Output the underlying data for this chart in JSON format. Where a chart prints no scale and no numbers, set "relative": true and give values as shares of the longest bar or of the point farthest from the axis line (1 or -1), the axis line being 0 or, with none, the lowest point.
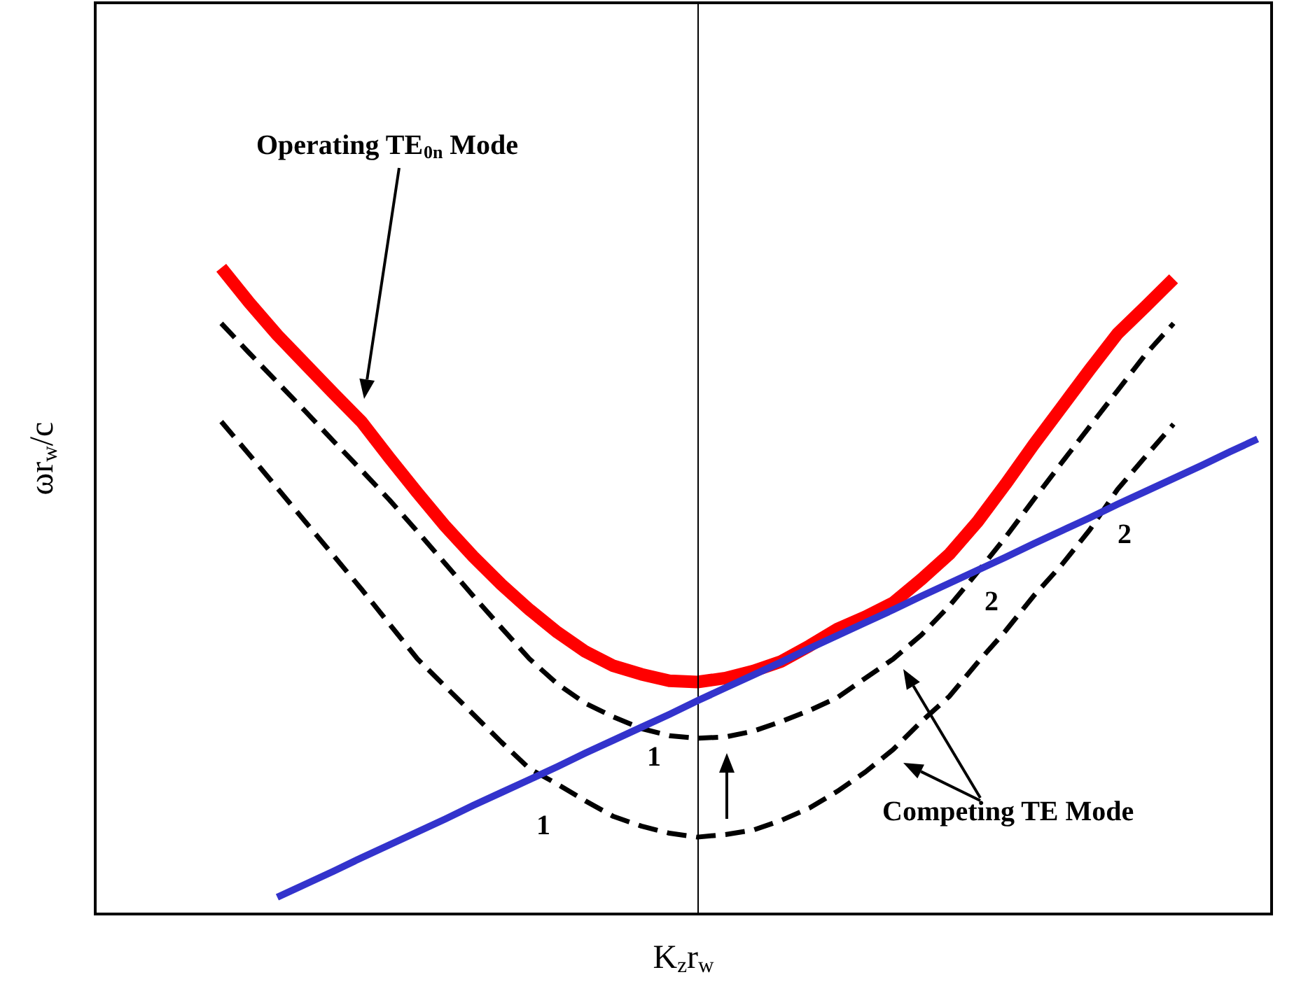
{
  "chart_data": {
    "type": "line",
    "relative": true,
    "xlabel": "K$_{z}$r$_{w}$",
    "ylabel": "ωr$_{w}$/c",
    "marker": "none",
    "categories": [
      null,
      null,
      null,
      null,
      null,
      null,
      null,
      null,
      null,
      null,
      null,
      null,
      null,
      null,
      null,
      null,
      null,
      null,
      null,
      null,
      null,
      null,
      null,
      null,
      null,
      null,
      null,
      null,
      null,
      null,
      null,
      null,
      null,
      null,
      null,
      null,
      null,
      null,
      null,
      null,
      null,
      null
    ],
    "annotations": [
      "Operating TE$_{0n}$ Mode",
      "Competing TE Mode",
      "1",
      "1",
      "2",
      "2"
    ],
    "series": [
      {
        "color": "#000000",
        "line_style": "dashed",
        "values": [
          null,
          null,
          null,
          null,
          0.914,
          0.868,
          0.823,
          0.778,
          0.732,
          0.687,
          0.641,
          0.592,
          0.542,
          0.492,
          0.443,
          0.395,
          0.356,
          0.326,
          0.305,
          0.287,
          0.276,
          0.272,
          0.274,
          0.283,
          0.298,
          0.315,
          0.335,
          0.365,
          0.395,
          0.432,
          0.477,
          0.529,
          0.583,
          0.641,
          0.698,
          0.754,
          0.81,
          0.866,
          0.914,
          null,
          null,
          null
        ]
      },
      {
        "color": "#000000",
        "line_style": "dashed",
        "values": [
          null,
          null,
          null,
          null,
          0.762,
          0.711,
          0.659,
          0.607,
          0.555,
          0.503,
          0.449,
          0.395,
          0.352,
          0.309,
          0.266,
          0.225,
          0.201,
          0.175,
          0.151,
          0.136,
          0.125,
          0.119,
          0.123,
          0.13,
          0.145,
          0.164,
          0.19,
          0.22,
          0.255,
          0.298,
          0.337,
          0.389,
          0.438,
          0.492,
          0.54,
          0.594,
          0.657,
          0.708,
          0.758,
          null,
          null,
          null
        ]
      },
      {
        "color": "#ff0000",
        "line_style": "solid",
        "values": [
          null,
          null,
          null,
          null,
          1,
          0.946,
          0.896,
          0.851,
          0.806,
          0.762,
          0.706,
          0.652,
          0.6,
          0.553,
          0.51,
          0.471,
          0.436,
          0.406,
          0.384,
          0.371,
          0.361,
          0.359,
          0.365,
          0.376,
          0.391,
          0.415,
          0.441,
          0.46,
          0.482,
          0.518,
          0.557,
          0.607,
          0.665,
          0.726,
          0.784,
          0.842,
          0.898,
          0.94,
          0.983,
          null,
          null,
          null
        ]
      },
      {
        "color": "#3333cc",
        "line_style": "solid",
        "values": [
          null,
          null,
          null,
          null,
          null,
          null,
          0.026,
          0.046,
          0.066,
          0.087,
          0.107,
          0.127,
          0.147,
          0.168,
          0.188,
          0.208,
          0.228,
          0.249,
          0.269,
          0.289,
          0.309,
          0.33,
          0.35,
          0.37,
          0.39,
          0.411,
          0.431,
          0.451,
          0.471,
          0.492,
          0.512,
          0.532,
          0.552,
          0.573,
          0.593,
          0.613,
          0.634,
          0.654,
          0.674,
          0.694,
          0.715,
          0.735
        ]
      }
    ]
  }
}
